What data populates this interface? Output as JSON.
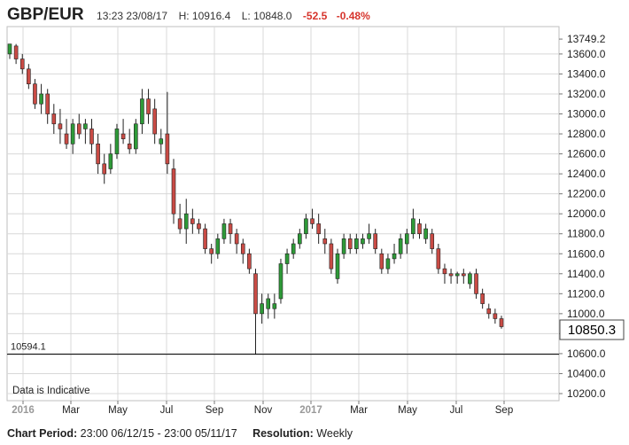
{
  "header": {
    "symbol": "GBP/EUR",
    "time": "13:23 23/08/17",
    "high": "H: 10916.4",
    "low": "L: 10848.0",
    "change": "-52.5",
    "change_pct": "-0.48%"
  },
  "notice": "Data is Indicative",
  "footer": {
    "period_label": "Chart Period:",
    "period_value": "23:00 06/12/15 - 23:00 05/11/17",
    "resolution_label": "Resolution:",
    "resolution_value": "Weekly"
  },
  "colors": {
    "up": "#2e9a38",
    "down": "#c94b45",
    "grid": "#d8d8d8",
    "line": "#000000"
  },
  "chart_data": {
    "type": "candlestick",
    "ylim": [
      10200,
      13750
    ],
    "yticks": [
      "13749.2",
      "13600.0",
      "13400.0",
      "13200.0",
      "13000.0",
      "12800.0",
      "12600.0",
      "12400.0",
      "12200.0",
      "12000.0",
      "11800.0",
      "11600.0",
      "11400.0",
      "11200.0",
      "11000.0",
      "10800.0",
      "10600.0",
      "10400.0",
      "10200.0"
    ],
    "xlabels": [
      "2016",
      "Mar",
      "May",
      "Jul",
      "Sep",
      "Nov",
      "2017",
      "Mar",
      "May",
      "Jul",
      "Sep"
    ],
    "current_price": "10850.3",
    "reference_line": {
      "label": "10594.1",
      "value": 10594.1
    },
    "candles": [
      {
        "o": 13600,
        "h": 13700,
        "l": 13550,
        "c": 13700
      },
      {
        "o": 13680,
        "h": 13700,
        "l": 13500,
        "c": 13550
      },
      {
        "o": 13550,
        "h": 13600,
        "l": 13400,
        "c": 13450
      },
      {
        "o": 13450,
        "h": 13500,
        "l": 13250,
        "c": 13300
      },
      {
        "o": 13300,
        "h": 13350,
        "l": 13050,
        "c": 13100
      },
      {
        "o": 13100,
        "h": 13300,
        "l": 13000,
        "c": 13200
      },
      {
        "o": 13200,
        "h": 13250,
        "l": 12900,
        "c": 13000
      },
      {
        "o": 13000,
        "h": 13100,
        "l": 12800,
        "c": 12900
      },
      {
        "o": 12900,
        "h": 13050,
        "l": 12700,
        "c": 12850
      },
      {
        "o": 12800,
        "h": 12950,
        "l": 12650,
        "c": 12700
      },
      {
        "o": 12700,
        "h": 12950,
        "l": 12600,
        "c": 12900
      },
      {
        "o": 12900,
        "h": 13000,
        "l": 12750,
        "c": 12800
      },
      {
        "o": 12850,
        "h": 12950,
        "l": 12700,
        "c": 12900
      },
      {
        "o": 12850,
        "h": 12950,
        "l": 12600,
        "c": 12700
      },
      {
        "o": 12700,
        "h": 12800,
        "l": 12400,
        "c": 12500
      },
      {
        "o": 12500,
        "h": 12600,
        "l": 12300,
        "c": 12400
      },
      {
        "o": 12450,
        "h": 12700,
        "l": 12400,
        "c": 12600
      },
      {
        "o": 12600,
        "h": 12900,
        "l": 12550,
        "c": 12850
      },
      {
        "o": 12800,
        "h": 12950,
        "l": 12700,
        "c": 12750
      },
      {
        "o": 12700,
        "h": 12850,
        "l": 12600,
        "c": 12650
      },
      {
        "o": 12650,
        "h": 12950,
        "l": 12600,
        "c": 12900
      },
      {
        "o": 12900,
        "h": 13250,
        "l": 12800,
        "c": 13150
      },
      {
        "o": 13150,
        "h": 13250,
        "l": 12900,
        "c": 13000
      },
      {
        "o": 13050,
        "h": 13150,
        "l": 12700,
        "c": 12800
      },
      {
        "o": 12700,
        "h": 12850,
        "l": 12600,
        "c": 12750
      },
      {
        "o": 12800,
        "h": 13220,
        "l": 12400,
        "c": 12500
      },
      {
        "o": 12450,
        "h": 12550,
        "l": 11900,
        "c": 12000
      },
      {
        "o": 11950,
        "h": 12100,
        "l": 11800,
        "c": 11850
      },
      {
        "o": 11850,
        "h": 12150,
        "l": 11700,
        "c": 12000
      },
      {
        "o": 11950,
        "h": 12050,
        "l": 11800,
        "c": 11900
      },
      {
        "o": 11900,
        "h": 11950,
        "l": 11800,
        "c": 11850
      },
      {
        "o": 11850,
        "h": 11900,
        "l": 11600,
        "c": 11650
      },
      {
        "o": 11650,
        "h": 11700,
        "l": 11500,
        "c": 11600
      },
      {
        "o": 11600,
        "h": 11800,
        "l": 11550,
        "c": 11750
      },
      {
        "o": 11750,
        "h": 11950,
        "l": 11700,
        "c": 11900
      },
      {
        "o": 11900,
        "h": 11950,
        "l": 11700,
        "c": 11800
      },
      {
        "o": 11800,
        "h": 11850,
        "l": 11600,
        "c": 11700
      },
      {
        "o": 11700,
        "h": 11750,
        "l": 11500,
        "c": 11600
      },
      {
        "o": 11600,
        "h": 11650,
        "l": 11400,
        "c": 11450
      },
      {
        "o": 11400,
        "h": 11450,
        "l": 10594,
        "c": 11000
      },
      {
        "o": 11000,
        "h": 11200,
        "l": 10900,
        "c": 11100
      },
      {
        "o": 11050,
        "h": 11200,
        "l": 10950,
        "c": 11150
      },
      {
        "o": 11050,
        "h": 11200,
        "l": 10950,
        "c": 11100
      },
      {
        "o": 11150,
        "h": 11550,
        "l": 11100,
        "c": 11500
      },
      {
        "o": 11500,
        "h": 11650,
        "l": 11400,
        "c": 11600
      },
      {
        "o": 11600,
        "h": 11750,
        "l": 11550,
        "c": 11700
      },
      {
        "o": 11700,
        "h": 11850,
        "l": 11650,
        "c": 11800
      },
      {
        "o": 11800,
        "h": 12000,
        "l": 11750,
        "c": 11950
      },
      {
        "o": 11950,
        "h": 12050,
        "l": 11850,
        "c": 11900
      },
      {
        "o": 11900,
        "h": 12000,
        "l": 11700,
        "c": 11800
      },
      {
        "o": 11750,
        "h": 11850,
        "l": 11600,
        "c": 11700
      },
      {
        "o": 11700,
        "h": 11750,
        "l": 11400,
        "c": 11450
      },
      {
        "o": 11350,
        "h": 11650,
        "l": 11300,
        "c": 11600
      },
      {
        "o": 11600,
        "h": 11800,
        "l": 11550,
        "c": 11750
      },
      {
        "o": 11750,
        "h": 11800,
        "l": 11600,
        "c": 11650
      },
      {
        "o": 11650,
        "h": 11800,
        "l": 11600,
        "c": 11750
      },
      {
        "o": 11700,
        "h": 11800,
        "l": 11650,
        "c": 11750
      },
      {
        "o": 11750,
        "h": 11900,
        "l": 11700,
        "c": 11800
      },
      {
        "o": 11800,
        "h": 11850,
        "l": 11600,
        "c": 11650
      },
      {
        "o": 11600,
        "h": 11650,
        "l": 11400,
        "c": 11450
      },
      {
        "o": 11450,
        "h": 11600,
        "l": 11400,
        "c": 11550
      },
      {
        "o": 11550,
        "h": 11700,
        "l": 11500,
        "c": 11600
      },
      {
        "o": 11600,
        "h": 11800,
        "l": 11550,
        "c": 11750
      },
      {
        "o": 11700,
        "h": 11850,
        "l": 11600,
        "c": 11800
      },
      {
        "o": 11800,
        "h": 12050,
        "l": 11750,
        "c": 11950
      },
      {
        "o": 11900,
        "h": 11950,
        "l": 11750,
        "c": 11800
      },
      {
        "o": 11750,
        "h": 11900,
        "l": 11700,
        "c": 11850
      },
      {
        "o": 11800,
        "h": 11850,
        "l": 11600,
        "c": 11650
      },
      {
        "o": 11650,
        "h": 11700,
        "l": 11400,
        "c": 11450
      },
      {
        "o": 11450,
        "h": 11500,
        "l": 11300,
        "c": 11400
      },
      {
        "o": 11400,
        "h": 11450,
        "l": 11300,
        "c": 11380
      },
      {
        "o": 11380,
        "h": 11420,
        "l": 11300,
        "c": 11400
      },
      {
        "o": 11400,
        "h": 11450,
        "l": 11300,
        "c": 11380
      },
      {
        "o": 11300,
        "h": 11420,
        "l": 11250,
        "c": 11400
      },
      {
        "o": 11400,
        "h": 11450,
        "l": 11150,
        "c": 11200
      },
      {
        "o": 11200,
        "h": 11250,
        "l": 11050,
        "c": 11100
      },
      {
        "o": 11050,
        "h": 11100,
        "l": 10950,
        "c": 11000
      },
      {
        "o": 11000,
        "h": 11050,
        "l": 10900,
        "c": 10950
      },
      {
        "o": 10950,
        "h": 10980,
        "l": 10850,
        "c": 10870
      }
    ]
  }
}
